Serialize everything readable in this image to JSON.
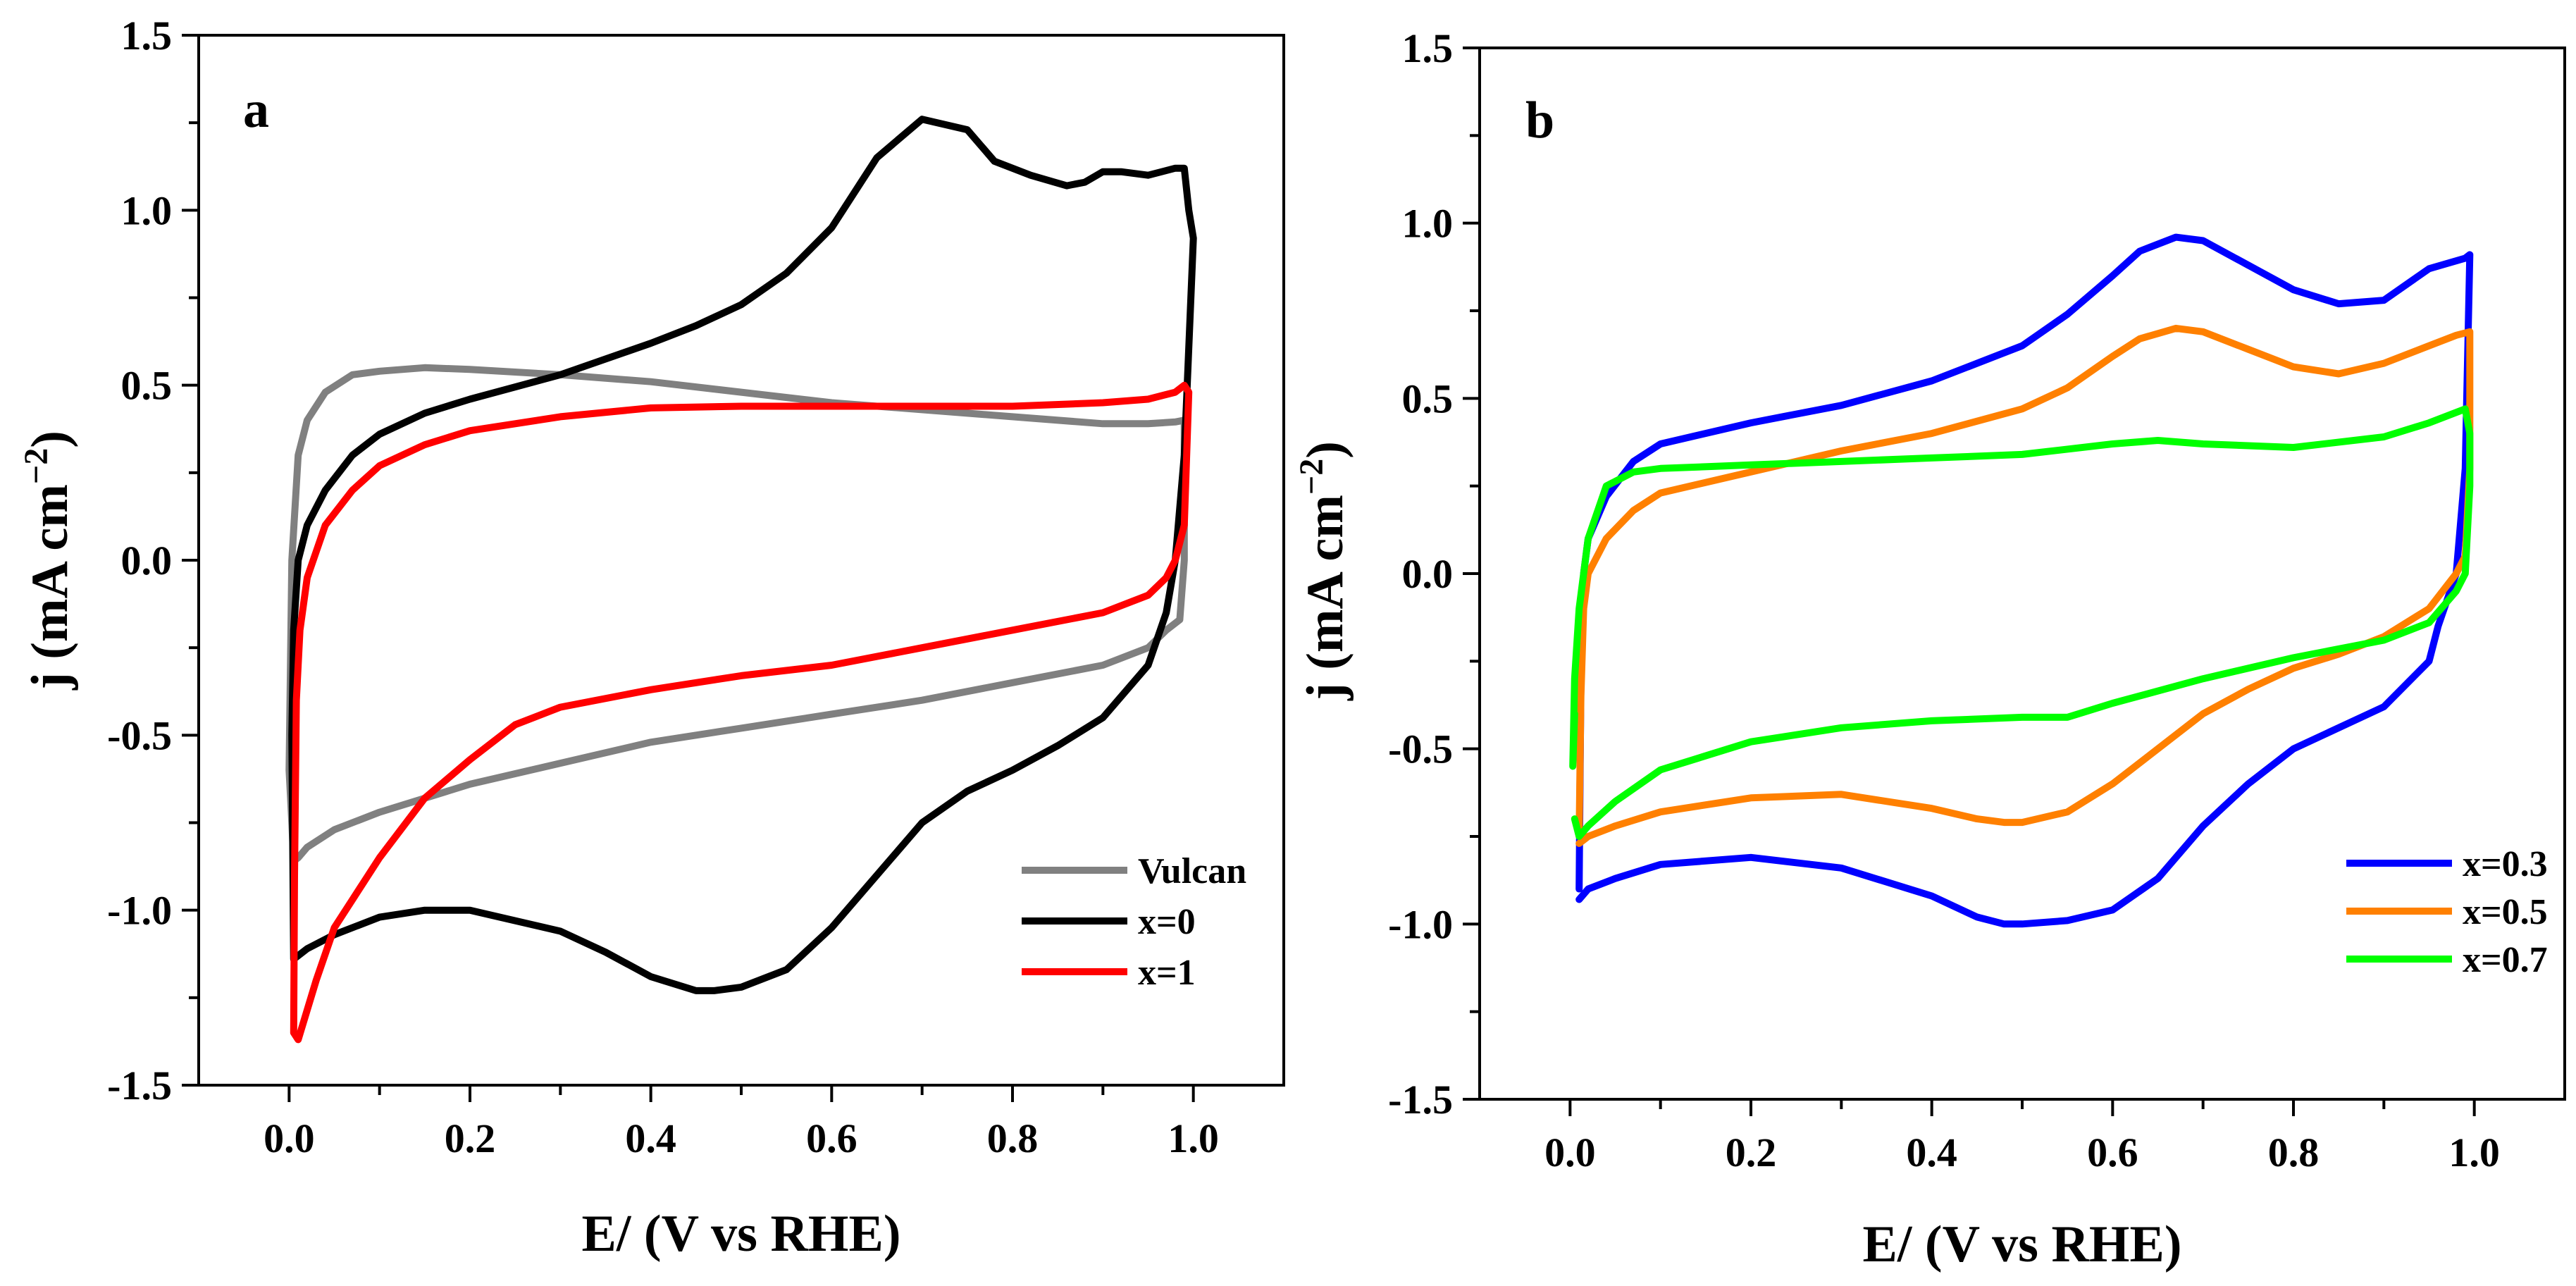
{
  "chart_data": [
    {
      "type": "line",
      "panel_label": "a",
      "xlabel": "E/ (V vs RHE)",
      "ylabel": "j (mA cm",
      "ylabel_sup": "−2",
      "ylabel_close": ")",
      "xlim": [
        -0.1,
        1.1
      ],
      "ylim": [
        -1.5,
        1.5
      ],
      "xticks": [
        0.0,
        0.2,
        0.4,
        0.6,
        0.8,
        1.0
      ],
      "xtick_labels": [
        "0.0",
        "0.2",
        "0.4",
        "0.6",
        "0.8",
        "1.0"
      ],
      "yticks": [
        -1.5,
        -1.0,
        -0.5,
        0.0,
        0.5,
        1.0,
        1.5
      ],
      "ytick_labels": [
        "-1.5",
        "-1.0",
        "-0.5",
        "0.0",
        "0.5",
        "1.0",
        "1.5"
      ],
      "legend_position": "bottom-right",
      "series": [
        {
          "name": "Vulcan",
          "color": "#808080",
          "x": [
            0.0,
            0.003,
            0.01,
            0.02,
            0.04,
            0.07,
            0.1,
            0.15,
            0.2,
            0.3,
            0.4,
            0.5,
            0.6,
            0.7,
            0.8,
            0.9,
            0.95,
            0.98,
            0.99,
            0.99,
            0.985,
            0.97,
            0.95,
            0.9,
            0.8,
            0.7,
            0.6,
            0.5,
            0.4,
            0.3,
            0.2,
            0.1,
            0.05,
            0.02,
            0.01,
            0.005,
            0.003,
            0.0
          ],
          "y": [
            -0.6,
            0.0,
            0.3,
            0.4,
            0.48,
            0.53,
            0.54,
            0.55,
            0.545,
            0.53,
            0.51,
            0.48,
            0.45,
            0.43,
            0.41,
            0.39,
            0.39,
            0.395,
            0.4,
            0.0,
            -0.17,
            -0.2,
            -0.25,
            -0.3,
            -0.35,
            -0.4,
            -0.44,
            -0.48,
            -0.52,
            -0.58,
            -0.64,
            -0.72,
            -0.77,
            -0.82,
            -0.85,
            -0.86,
            -0.75,
            -0.6
          ]
        },
        {
          "name": "x=0",
          "color": "#000000",
          "x": [
            0.003,
            0.005,
            0.01,
            0.02,
            0.04,
            0.07,
            0.1,
            0.15,
            0.2,
            0.3,
            0.4,
            0.45,
            0.5,
            0.55,
            0.6,
            0.65,
            0.7,
            0.75,
            0.78,
            0.82,
            0.86,
            0.88,
            0.9,
            0.92,
            0.95,
            0.98,
            0.99,
            0.995,
            1.0,
            0.99,
            0.98,
            0.97,
            0.95,
            0.9,
            0.85,
            0.8,
            0.75,
            0.7,
            0.65,
            0.6,
            0.55,
            0.5,
            0.47,
            0.45,
            0.4,
            0.35,
            0.3,
            0.2,
            0.15,
            0.1,
            0.05,
            0.02,
            0.005,
            0.003
          ],
          "y": [
            -0.5,
            -0.2,
            0.0,
            0.1,
            0.2,
            0.3,
            0.36,
            0.42,
            0.46,
            0.53,
            0.62,
            0.67,
            0.73,
            0.82,
            0.95,
            1.15,
            1.26,
            1.23,
            1.14,
            1.1,
            1.07,
            1.08,
            1.11,
            1.11,
            1.1,
            1.12,
            1.12,
            1.0,
            0.92,
            0.3,
            0.0,
            -0.15,
            -0.3,
            -0.45,
            -0.53,
            -0.6,
            -0.66,
            -0.75,
            -0.9,
            -1.05,
            -1.17,
            -1.22,
            -1.23,
            -1.23,
            -1.19,
            -1.12,
            -1.06,
            -1.0,
            -1.0,
            -1.02,
            -1.07,
            -1.11,
            -1.14,
            -0.5
          ]
        },
        {
          "name": "x=1",
          "color": "#ff0000",
          "x": [
            0.005,
            0.006,
            0.008,
            0.012,
            0.02,
            0.04,
            0.07,
            0.1,
            0.15,
            0.2,
            0.3,
            0.4,
            0.5,
            0.6,
            0.7,
            0.8,
            0.9,
            0.95,
            0.98,
            0.99,
            0.995,
            0.99,
            0.98,
            0.97,
            0.95,
            0.9,
            0.8,
            0.7,
            0.6,
            0.5,
            0.4,
            0.3,
            0.25,
            0.2,
            0.15,
            0.1,
            0.05,
            0.03,
            0.01,
            0.005
          ],
          "y": [
            -1.35,
            -0.9,
            -0.4,
            -0.2,
            -0.05,
            0.1,
            0.2,
            0.27,
            0.33,
            0.37,
            0.41,
            0.435,
            0.44,
            0.44,
            0.44,
            0.44,
            0.45,
            0.46,
            0.48,
            0.5,
            0.48,
            0.1,
            0.0,
            -0.05,
            -0.1,
            -0.15,
            -0.2,
            -0.25,
            -0.3,
            -0.33,
            -0.37,
            -0.42,
            -0.47,
            -0.57,
            -0.68,
            -0.85,
            -1.05,
            -1.2,
            -1.37,
            -1.35
          ]
        }
      ]
    },
    {
      "type": "line",
      "panel_label": "b",
      "xlabel": "E/ (V vs RHE)",
      "ylabel": "j (mA cm",
      "ylabel_sup": "−2",
      "ylabel_close": ")",
      "xlim": [
        -0.1,
        1.1
      ],
      "ylim": [
        -1.5,
        1.5
      ],
      "xticks": [
        0.0,
        0.2,
        0.4,
        0.6,
        0.8,
        1.0
      ],
      "xtick_labels": [
        "0.0",
        "0.2",
        "0.4",
        "0.6",
        "0.8",
        "1.0"
      ],
      "yticks": [
        -1.5,
        -1.0,
        -0.5,
        0.0,
        0.5,
        1.0,
        1.5
      ],
      "ytick_labels": [
        "-1.5",
        "-1.0",
        "-0.5",
        "0.0",
        "0.5",
        "1.0",
        "1.5"
      ],
      "legend_position": "bottom-right",
      "series": [
        {
          "name": "x=0.3",
          "color": "#0000ff",
          "x": [
            0.01,
            0.012,
            0.015,
            0.02,
            0.04,
            0.07,
            0.1,
            0.2,
            0.3,
            0.4,
            0.5,
            0.55,
            0.6,
            0.63,
            0.67,
            0.7,
            0.75,
            0.8,
            0.85,
            0.9,
            0.95,
            0.99,
            0.995,
            0.99,
            0.98,
            0.96,
            0.95,
            0.9,
            0.85,
            0.8,
            0.75,
            0.7,
            0.65,
            0.6,
            0.55,
            0.5,
            0.48,
            0.45,
            0.4,
            0.3,
            0.2,
            0.1,
            0.05,
            0.02,
            0.01
          ],
          "y": [
            -0.9,
            -0.3,
            0.0,
            0.1,
            0.22,
            0.32,
            0.37,
            0.43,
            0.48,
            0.55,
            0.65,
            0.74,
            0.85,
            0.92,
            0.96,
            0.95,
            0.88,
            0.81,
            0.77,
            0.78,
            0.87,
            0.9,
            0.91,
            0.3,
            0.0,
            -0.15,
            -0.25,
            -0.38,
            -0.44,
            -0.5,
            -0.6,
            -0.72,
            -0.87,
            -0.96,
            -0.99,
            -1.0,
            -1.0,
            -0.98,
            -0.92,
            -0.84,
            -0.81,
            -0.83,
            -0.87,
            -0.9,
            -0.93
          ]
        },
        {
          "name": "x=0.5",
          "color": "#ff8000",
          "x": [
            0.01,
            0.012,
            0.015,
            0.02,
            0.04,
            0.07,
            0.1,
            0.2,
            0.3,
            0.4,
            0.5,
            0.55,
            0.6,
            0.63,
            0.67,
            0.7,
            0.75,
            0.8,
            0.85,
            0.9,
            0.95,
            0.98,
            0.995,
            0.995,
            0.99,
            0.98,
            0.95,
            0.9,
            0.85,
            0.8,
            0.75,
            0.7,
            0.65,
            0.6,
            0.55,
            0.5,
            0.48,
            0.45,
            0.4,
            0.3,
            0.2,
            0.1,
            0.05,
            0.02,
            0.01
          ],
          "y": [
            -0.75,
            -0.35,
            -0.1,
            0.0,
            0.1,
            0.18,
            0.23,
            0.29,
            0.35,
            0.4,
            0.47,
            0.53,
            0.62,
            0.67,
            0.7,
            0.69,
            0.64,
            0.59,
            0.57,
            0.6,
            0.65,
            0.68,
            0.69,
            0.3,
            0.05,
            0.0,
            -0.1,
            -0.18,
            -0.23,
            -0.27,
            -0.33,
            -0.4,
            -0.5,
            -0.6,
            -0.68,
            -0.71,
            -0.71,
            -0.7,
            -0.67,
            -0.63,
            -0.64,
            -0.68,
            -0.72,
            -0.75,
            -0.77
          ]
        },
        {
          "name": "x=0.7",
          "color": "#00ff00",
          "x": [
            0.005,
            0.003,
            0.005,
            0.01,
            0.02,
            0.04,
            0.07,
            0.1,
            0.2,
            0.3,
            0.4,
            0.5,
            0.6,
            0.65,
            0.7,
            0.8,
            0.9,
            0.95,
            0.99,
            0.995,
            0.995,
            0.99,
            0.98,
            0.95,
            0.9,
            0.8,
            0.7,
            0.6,
            0.55,
            0.5,
            0.4,
            0.3,
            0.2,
            0.1,
            0.05,
            0.02,
            0.01,
            0.005
          ],
          "y": [
            -0.4,
            -0.55,
            -0.3,
            -0.1,
            0.1,
            0.25,
            0.29,
            0.3,
            0.31,
            0.32,
            0.33,
            0.34,
            0.37,
            0.38,
            0.37,
            0.36,
            0.39,
            0.43,
            0.47,
            0.4,
            0.25,
            0.0,
            -0.05,
            -0.14,
            -0.19,
            -0.24,
            -0.3,
            -0.37,
            -0.41,
            -0.41,
            -0.42,
            -0.44,
            -0.48,
            -0.56,
            -0.65,
            -0.72,
            -0.75,
            -0.7
          ]
        }
      ]
    }
  ]
}
